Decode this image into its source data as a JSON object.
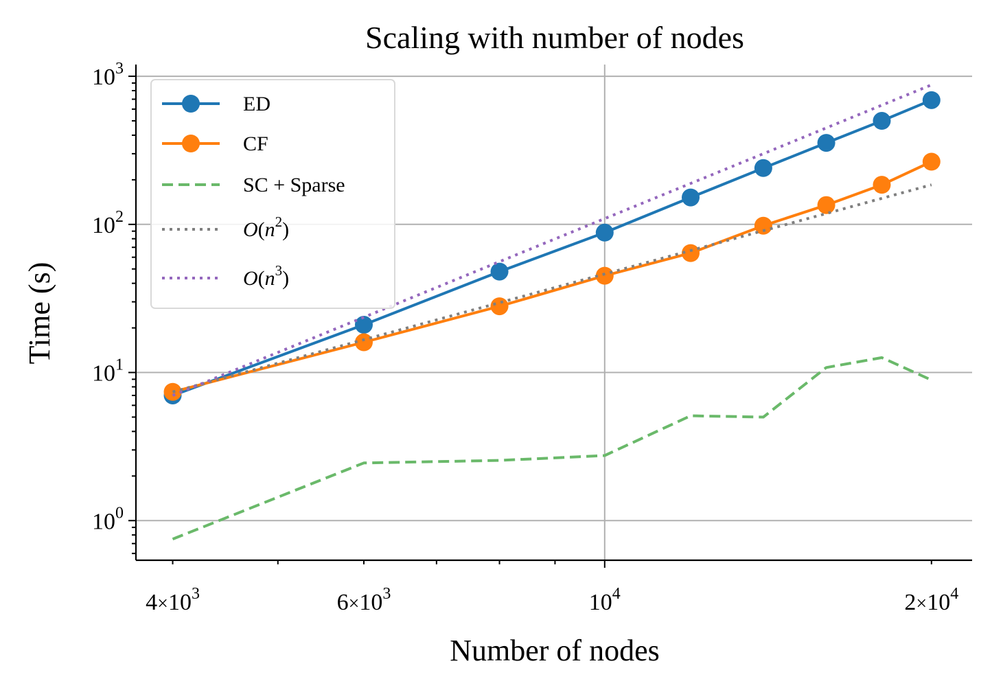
{
  "chart_data": {
    "type": "line",
    "title": "Scaling with number of nodes",
    "xlabel": "Number of nodes",
    "ylabel": "Time (s)",
    "xscale": "log",
    "yscale": "log",
    "xlim": [
      3700,
      21800
    ],
    "ylim": [
      0.54,
      1200
    ],
    "grid": "major",
    "legend_position": "top-left",
    "x": [
      4000,
      6000,
      8000,
      10000,
      12000,
      14000,
      16000,
      18000,
      20000
    ],
    "x_ticks": [
      {
        "value": 4000,
        "mantissa": "4",
        "exponent": "3"
      },
      {
        "value": 6000,
        "mantissa": "6",
        "exponent": "3"
      },
      {
        "value": 10000,
        "mantissa": "",
        "exponent": "4"
      },
      {
        "value": 20000,
        "mantissa": "2",
        "exponent": "4"
      }
    ],
    "y_ticks": [
      {
        "value": 1,
        "exponent": "0"
      },
      {
        "value": 10,
        "exponent": "1"
      },
      {
        "value": 100,
        "exponent": "2"
      },
      {
        "value": 1000,
        "exponent": "3"
      }
    ],
    "series": [
      {
        "name": "ED",
        "color": "#1f77b4",
        "style": "solid",
        "marker": "circle",
        "values": [
          7.0,
          21,
          48,
          88,
          152,
          240,
          355,
          500,
          690
        ]
      },
      {
        "name": "CF",
        "color": "#ff7f0e",
        "style": "solid",
        "marker": "circle",
        "values": [
          7.4,
          16,
          28,
          45,
          64,
          98,
          135,
          185,
          265
        ]
      },
      {
        "name": "SC + Sparse",
        "color": "#6ab96a",
        "style": "dashed",
        "marker": "none",
        "values": [
          0.75,
          2.45,
          2.55,
          2.75,
          5.1,
          5.0,
          10.8,
          12.6,
          8.9
        ]
      },
      {
        "name": "O(n2)",
        "label_base": "O(n",
        "label_sup": "2",
        "label_tail": ")",
        "color": "#7f7f7f",
        "style": "dotted",
        "marker": "none",
        "values": [
          7.4,
          16.65,
          29.6,
          46.25,
          66.6,
          90.65,
          118.4,
          149.85,
          185
        ]
      },
      {
        "name": "O(n3)",
        "label_base": "O(n",
        "label_sup": "3",
        "label_tail": ")",
        "color": "#9467bd",
        "style": "dotted",
        "marker": "none",
        "values": [
          7.0,
          23.6,
          56.0,
          109.4,
          189.0,
          300.1,
          448.0,
          637.9,
          875.0
        ]
      }
    ]
  }
}
